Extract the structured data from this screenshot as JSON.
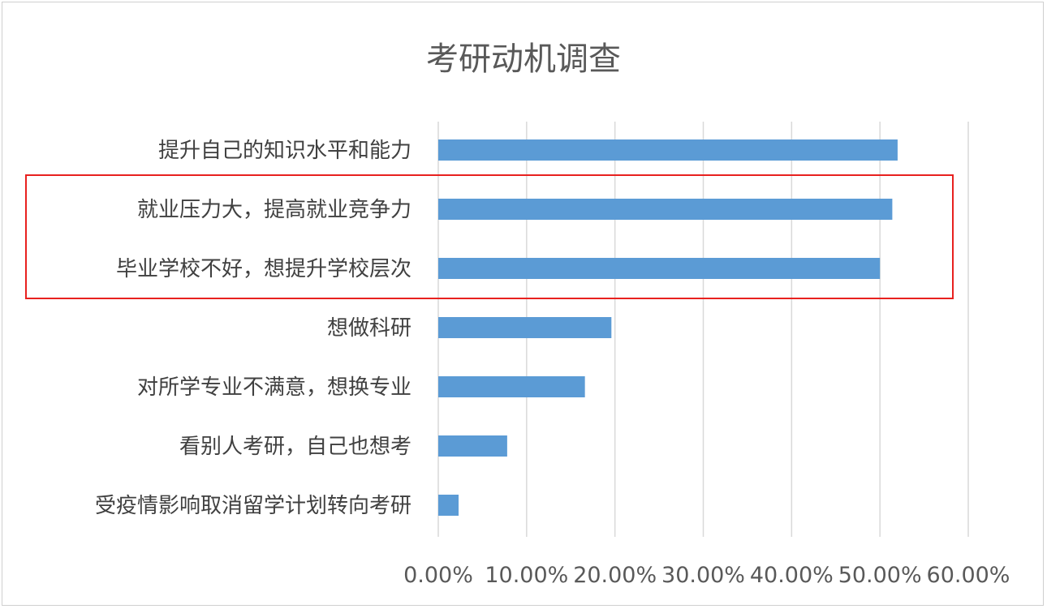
{
  "chart_data": {
    "type": "bar",
    "orientation": "horizontal",
    "title": "考研动机调查",
    "categories": [
      "提升自己的知识水平和能力",
      "就业压力大，提高就业竞争力",
      "毕业学校不好，想提升学校层次",
      "想做科研",
      "对所学专业不满意，想换专业",
      "看别人考研，自己也想考",
      "受疫情影响取消留学计划转向考研"
    ],
    "values": [
      0.52,
      0.514,
      0.5,
      0.196,
      0.166,
      0.078,
      0.023
    ],
    "xlim": [
      0,
      0.6
    ],
    "ticks": [
      0,
      0.1,
      0.2,
      0.3,
      0.4,
      0.5,
      0.6
    ],
    "tick_labels": [
      "0.00%",
      "10.00%",
      "20.00%",
      "30.00%",
      "40.00%",
      "50.00%",
      "60.00%"
    ],
    "grid": true,
    "bar_color": "#5b9bd5",
    "highlight_color": "#e8211f",
    "highlighted_categories": [
      1,
      2
    ]
  }
}
